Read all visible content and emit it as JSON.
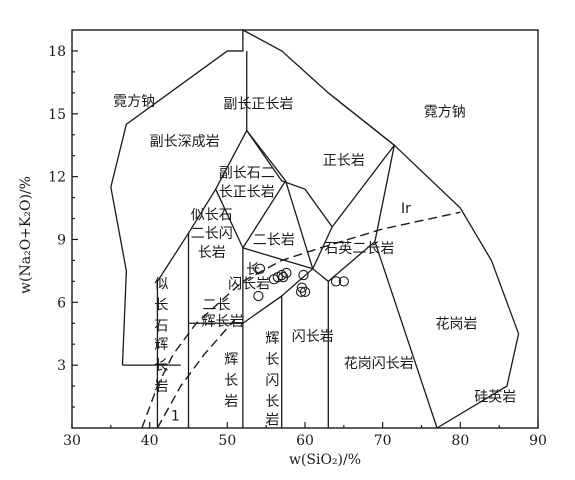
{
  "chart_data": {
    "type": "scatter",
    "xlabel": "w(SiO₂)/%",
    "ylabel": "w(Na₂O+K₂O)/%",
    "xlim": [
      30,
      90
    ],
    "ylim": [
      0,
      19
    ],
    "xticks": [
      30,
      40,
      50,
      60,
      70,
      80,
      90
    ],
    "yticks": [
      3,
      6,
      9,
      12,
      15,
      18
    ],
    "field_labels": [
      {
        "text": "霓方钠",
        "x": 38,
        "y": 15.6
      },
      {
        "text": "霓方钠",
        "x": 78,
        "y": 15.1
      },
      {
        "text": "副长正长岩",
        "x": 54,
        "y": 15.5
      },
      {
        "text": "副长深成岩",
        "x": 44.5,
        "y": 13.7
      },
      {
        "text": "副长石二",
        "x": 52.5,
        "y": 12.2
      },
      {
        "text": "长正长岩",
        "x": 52.5,
        "y": 11.3
      },
      {
        "text": "正长岩",
        "x": 65,
        "y": 12.8
      },
      {
        "text": "Ir",
        "x": 73,
        "y": 10.5
      },
      {
        "text": "似长石",
        "x": 48,
        "y": 10.2
      },
      {
        "text": "二长闪",
        "x": 48,
        "y": 9.3
      },
      {
        "text": "长岩",
        "x": 48,
        "y": 8.4
      },
      {
        "text": "二长岩",
        "x": 56,
        "y": 9.0
      },
      {
        "text": "石英二长岩",
        "x": 67,
        "y": 8.6
      },
      {
        "text": "长",
        "x": 53.3,
        "y": 7.6
      },
      {
        "text": "闪长岩",
        "x": 52.8,
        "y": 6.9
      },
      {
        "text": "二长",
        "x": 48.6,
        "y": 5.9
      },
      {
        "text": "辉长岩",
        "x": 49.4,
        "y": 5.1
      },
      {
        "text": "似",
        "x": 41.5,
        "y": 6.9
      },
      {
        "text": "长",
        "x": 41.5,
        "y": 5.9
      },
      {
        "text": "石",
        "x": 41.5,
        "y": 4.9
      },
      {
        "text": "辉",
        "x": 41.5,
        "y": 4.0
      },
      {
        "text": "长",
        "x": 41.5,
        "y": 3.0
      },
      {
        "text": "岩",
        "x": 41.5,
        "y": 2.0
      },
      {
        "text": "1",
        "x": 43.3,
        "y": 0.6
      },
      {
        "text": "辉",
        "x": 50.5,
        "y": 3.3
      },
      {
        "text": "长",
        "x": 50.5,
        "y": 2.3
      },
      {
        "text": "岩",
        "x": 50.5,
        "y": 1.3
      },
      {
        "text": "辉",
        "x": 55.8,
        "y": 4.3
      },
      {
        "text": "长",
        "x": 55.8,
        "y": 3.3
      },
      {
        "text": "闪",
        "x": 55.8,
        "y": 2.3
      },
      {
        "text": "长",
        "x": 55.8,
        "y": 1.3
      },
      {
        "text": "岩",
        "x": 55.8,
        "y": 0.4
      },
      {
        "text": "闪长岩",
        "x": 61,
        "y": 4.4
      },
      {
        "text": "花岗闪长岩",
        "x": 69.5,
        "y": 3.1
      },
      {
        "text": "花岗岩",
        "x": 79.5,
        "y": 5.0
      },
      {
        "text": "硅英岩",
        "x": 84.5,
        "y": 1.5
      }
    ],
    "boundaries": [
      [
        [
          36.5,
          3.0
        ],
        [
          37,
          7.5
        ],
        [
          35,
          11.5
        ],
        [
          37,
          14.5
        ],
        [
          50,
          18
        ],
        [
          52,
          18
        ],
        [
          52,
          19
        ],
        [
          57,
          18
        ],
        [
          63,
          16
        ],
        [
          71.5,
          13.5
        ],
        [
          80,
          10.5
        ],
        [
          84,
          8
        ],
        [
          87.5,
          4.5
        ],
        [
          86,
          2
        ],
        [
          77,
          0
        ]
      ],
      [
        [
          36.5,
          3.0
        ],
        [
          44,
          3.0
        ]
      ],
      [
        [
          41,
          0
        ],
        [
          41,
          7
        ]
      ],
      [
        [
          41,
          7
        ],
        [
          45,
          9.3
        ],
        [
          48.5,
          11.4
        ],
        [
          52.5,
          14.2
        ]
      ],
      [
        [
          52.5,
          14.2
        ],
        [
          52.5,
          18
        ]
      ],
      [
        [
          52.5,
          14.2
        ],
        [
          57,
          11.8
        ],
        [
          60,
          11.4
        ],
        [
          63.5,
          9.6
        ]
      ],
      [
        [
          45,
          9.3
        ],
        [
          45,
          5
        ]
      ],
      [
        [
          45,
          5
        ],
        [
          52,
          5
        ],
        [
          52,
          0
        ]
      ],
      [
        [
          45,
          5
        ],
        [
          45,
          0
        ]
      ],
      [
        [
          48.5,
          11.4
        ],
        [
          52,
          8.6
        ],
        [
          52,
          5
        ]
      ],
      [
        [
          52.5,
          14.2
        ],
        [
          57.5,
          11.8
        ],
        [
          52,
          8.6
        ]
      ],
      [
        [
          52,
          5
        ],
        [
          57,
          6.3
        ],
        [
          57,
          0
        ]
      ],
      [
        [
          57,
          6.3
        ],
        [
          61,
          7.6
        ],
        [
          63,
          7.0
        ],
        [
          63,
          0
        ]
      ],
      [
        [
          61,
          7.6
        ],
        [
          52,
          8.6
        ]
      ],
      [
        [
          57.5,
          11.8
        ],
        [
          61,
          7.6
        ]
      ],
      [
        [
          63.5,
          9.6
        ],
        [
          61,
          7.6
        ]
      ],
      [
        [
          63,
          7.0
        ],
        [
          69,
          8.9
        ],
        [
          71.5,
          13.5
        ],
        [
          63.5,
          9.6
        ]
      ],
      [
        [
          69,
          8.9
        ],
        [
          77,
          0
        ]
      ],
      [
        [
          71.5,
          13.5
        ],
        [
          63,
          16
        ]
      ]
    ],
    "dashed_boundaries": [
      [
        [
          39,
          0
        ],
        [
          41,
          2
        ],
        [
          43,
          3.5
        ],
        [
          46,
          5
        ],
        [
          52,
          7
        ],
        [
          57,
          8
        ],
        [
          62,
          8.6
        ],
        [
          70,
          9.5
        ],
        [
          80,
          10.3
        ]
      ],
      [
        [
          41,
          0
        ],
        [
          44,
          2
        ],
        [
          47,
          3.5
        ],
        [
          51,
          5.2
        ]
      ]
    ],
    "points": [
      {
        "x": 54,
        "y": 6.3
      },
      {
        "x": 54.2,
        "y": 7.6
      },
      {
        "x": 56,
        "y": 7.1
      },
      {
        "x": 56.5,
        "y": 7.2
      },
      {
        "x": 57,
        "y": 7.3
      },
      {
        "x": 57.2,
        "y": 7.2
      },
      {
        "x": 57.6,
        "y": 7.4
      },
      {
        "x": 59.5,
        "y": 6.5
      },
      {
        "x": 59.6,
        "y": 6.7
      },
      {
        "x": 60,
        "y": 6.5
      },
      {
        "x": 59.8,
        "y": 7.3
      },
      {
        "x": 64,
        "y": 7.0
      },
      {
        "x": 65,
        "y": 7.0
      }
    ]
  }
}
